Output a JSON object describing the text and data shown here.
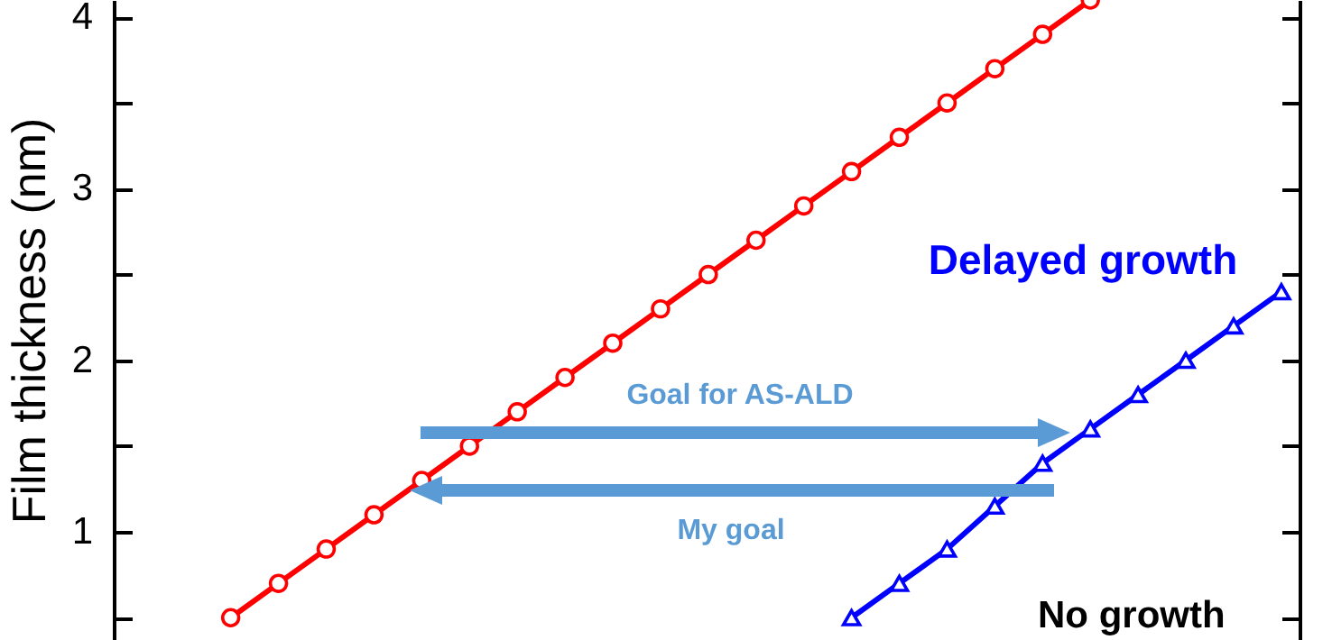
{
  "chart_data": {
    "type": "line",
    "ylabel": "Film thickness (nm)",
    "categories": [
      null,
      null,
      null,
      null,
      null,
      null,
      null,
      null,
      null,
      null,
      null,
      null,
      null,
      null,
      null,
      null,
      null,
      null,
      null,
      null,
      null,
      null,
      null
    ],
    "series": [
      {
        "color": "#ff0000",
        "marker": "circle",
        "values": [
          0.5,
          0.7,
          0.9,
          1.1,
          1.3,
          1.5,
          1.7,
          1.9,
          2.1,
          2.3,
          2.5,
          2.7,
          2.9,
          3.1,
          3.3,
          3.5,
          3.7,
          3.9,
          4.1,
          null,
          null,
          null,
          null
        ]
      },
      {
        "color": "#0000ff",
        "marker": "triangle",
        "values": [
          null,
          null,
          null,
          null,
          null,
          null,
          null,
          null,
          null,
          null,
          null,
          null,
          null,
          0.5,
          0.7,
          0.9,
          1.15,
          1.4,
          1.6,
          1.8,
          2.0,
          2.2,
          2.4
        ]
      }
    ],
    "ylim": [
      0.37,
      4.1
    ],
    "yticks": [
      {
        "value": 0.5,
        "label": null
      },
      1,
      {
        "value": 1.5,
        "label": null
      },
      2,
      {
        "value": 2.5,
        "label": null
      },
      3,
      {
        "value": 3.5,
        "label": null
      },
      4
    ],
    "annotations": [
      "Delayed growth",
      "Goal for AS-ALD",
      "My goal",
      "No growth"
    ],
    "grid": false,
    "tick_labels": "y"
  }
}
